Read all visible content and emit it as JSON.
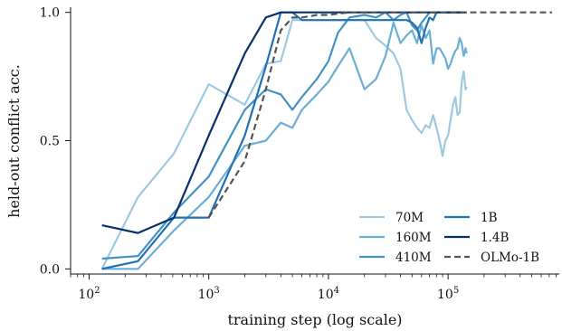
{
  "chart_data": {
    "type": "line",
    "xscale": "log",
    "xlabel": "training step (log scale)",
    "ylabel": "held-out conflict acc.",
    "xlim": [
      70,
      850000
    ],
    "ylim": [
      -0.02,
      1.02
    ],
    "grid": false,
    "legend_position": "lower-right",
    "x_ticks": [
      {
        "value": 100,
        "base": "10",
        "exp": "2"
      },
      {
        "value": 1000,
        "base": "10",
        "exp": "3"
      },
      {
        "value": 10000,
        "base": "10",
        "exp": "4"
      },
      {
        "value": 100000,
        "base": "10",
        "exp": "5"
      }
    ],
    "y_ticks": [
      {
        "value": 0.0,
        "label": "0.0"
      },
      {
        "value": 0.5,
        "label": "0.5"
      },
      {
        "value": 1.0,
        "label": "1.0"
      }
    ],
    "series": [
      {
        "name": "70M",
        "color": "#9ecae1",
        "dash": false,
        "points": [
          [
            128,
            0.0
          ],
          [
            256,
            0.28
          ],
          [
            512,
            0.45
          ],
          [
            1000,
            0.72
          ],
          [
            2000,
            0.64
          ],
          [
            3000,
            0.8
          ],
          [
            4000,
            0.81
          ],
          [
            5000,
            0.97
          ],
          [
            6000,
            0.97
          ],
          [
            7000,
            0.97
          ],
          [
            8000,
            0.97
          ],
          [
            10000,
            0.97
          ],
          [
            12000,
            0.97
          ],
          [
            15000,
            0.97
          ],
          [
            20000,
            0.97
          ],
          [
            25000,
            0.9
          ],
          [
            30000,
            0.87
          ],
          [
            35000,
            0.84
          ],
          [
            40000,
            0.78
          ],
          [
            45000,
            0.62
          ],
          [
            50000,
            0.58
          ],
          [
            55000,
            0.55
          ],
          [
            60000,
            0.53
          ],
          [
            65000,
            0.56
          ],
          [
            70000,
            0.55
          ],
          [
            75000,
            0.6
          ],
          [
            80000,
            0.55
          ],
          [
            85000,
            0.5
          ],
          [
            90000,
            0.44
          ],
          [
            95000,
            0.5
          ],
          [
            100000,
            0.52
          ],
          [
            110000,
            0.64
          ],
          [
            115000,
            0.67
          ],
          [
            120000,
            0.6
          ],
          [
            125000,
            0.61
          ],
          [
            130000,
            0.73
          ],
          [
            135000,
            0.77
          ],
          [
            140000,
            0.7
          ],
          [
            143000,
            0.71
          ]
        ]
      },
      {
        "name": "160M",
        "color": "#6baed6",
        "dash": false,
        "points": [
          [
            128,
            0.0
          ],
          [
            256,
            0.0
          ],
          [
            512,
            0.15
          ],
          [
            1000,
            0.28
          ],
          [
            2000,
            0.48
          ],
          [
            3000,
            0.5
          ],
          [
            4000,
            0.57
          ],
          [
            5000,
            0.55
          ],
          [
            6000,
            0.62
          ],
          [
            8000,
            0.68
          ],
          [
            10000,
            0.73
          ],
          [
            12000,
            0.79
          ],
          [
            15000,
            0.86
          ],
          [
            20000,
            0.7
          ],
          [
            25000,
            0.74
          ],
          [
            30000,
            0.83
          ],
          [
            35000,
            0.96
          ],
          [
            40000,
            0.88
          ],
          [
            45000,
            0.91
          ],
          [
            50000,
            0.93
          ],
          [
            55000,
            0.88
          ],
          [
            60000,
            0.95
          ],
          [
            65000,
            0.9
          ],
          [
            70000,
            0.93
          ],
          [
            75000,
            0.8
          ],
          [
            80000,
            0.86
          ],
          [
            85000,
            0.86
          ],
          [
            90000,
            0.84
          ],
          [
            95000,
            0.82
          ],
          [
            100000,
            0.78
          ],
          [
            105000,
            0.8
          ],
          [
            110000,
            0.83
          ],
          [
            115000,
            0.85
          ],
          [
            120000,
            0.86
          ],
          [
            125000,
            0.9
          ],
          [
            130000,
            0.88
          ],
          [
            135000,
            0.83
          ],
          [
            140000,
            0.86
          ],
          [
            143000,
            0.84
          ]
        ]
      },
      {
        "name": "410M",
        "color": "#4292c6",
        "dash": false,
        "points": [
          [
            128,
            0.04
          ],
          [
            256,
            0.05
          ],
          [
            512,
            0.22
          ],
          [
            1000,
            0.36
          ],
          [
            2000,
            0.62
          ],
          [
            3000,
            0.7
          ],
          [
            4000,
            0.68
          ],
          [
            5000,
            0.62
          ],
          [
            6000,
            0.67
          ],
          [
            8000,
            0.74
          ],
          [
            10000,
            0.81
          ],
          [
            12000,
            0.92
          ],
          [
            15000,
            0.98
          ],
          [
            20000,
            0.99
          ],
          [
            25000,
            0.98
          ],
          [
            30000,
            1.0
          ],
          [
            35000,
            0.97
          ],
          [
            40000,
            0.99
          ],
          [
            45000,
            1.0
          ],
          [
            50000,
            0.95
          ],
          [
            55000,
            0.93
          ],
          [
            60000,
            0.96
          ],
          [
            65000,
            0.98
          ],
          [
            70000,
            1.0
          ],
          [
            80000,
            1.0
          ],
          [
            100000,
            1.0
          ],
          [
            143000,
            1.0
          ]
        ]
      },
      {
        "name": "1B",
        "color": "#2171b5",
        "dash": false,
        "points": [
          [
            128,
            0.0
          ],
          [
            256,
            0.03
          ],
          [
            512,
            0.2
          ],
          [
            1000,
            0.2
          ],
          [
            2000,
            0.52
          ],
          [
            3000,
            0.79
          ],
          [
            4000,
            1.0
          ],
          [
            5000,
            1.0
          ],
          [
            6000,
            0.97
          ],
          [
            8000,
            0.97
          ],
          [
            10000,
            0.97
          ],
          [
            15000,
            0.97
          ],
          [
            20000,
            0.97
          ],
          [
            25000,
            0.97
          ],
          [
            30000,
            0.97
          ],
          [
            35000,
            0.97
          ],
          [
            40000,
            0.97
          ],
          [
            45000,
            0.97
          ],
          [
            50000,
            0.96
          ],
          [
            55000,
            0.94
          ],
          [
            60000,
            0.88
          ],
          [
            65000,
            0.94
          ],
          [
            70000,
            0.98
          ],
          [
            75000,
            0.97
          ],
          [
            80000,
            1.0
          ],
          [
            100000,
            1.0
          ],
          [
            143000,
            1.0
          ]
        ]
      },
      {
        "name": "1.4B",
        "color": "#08306b",
        "dash": false,
        "points": [
          [
            128,
            0.17
          ],
          [
            256,
            0.14
          ],
          [
            512,
            0.2
          ],
          [
            1000,
            0.52
          ],
          [
            2000,
            0.84
          ],
          [
            3000,
            0.98
          ],
          [
            4000,
            1.0
          ],
          [
            5000,
            1.0
          ],
          [
            6000,
            1.0
          ],
          [
            8000,
            1.0
          ],
          [
            10000,
            1.0
          ],
          [
            20000,
            1.0
          ],
          [
            50000,
            1.0
          ],
          [
            100000,
            1.0
          ],
          [
            143000,
            1.0
          ]
        ]
      },
      {
        "name": "OLMo-1B",
        "color": "#555555",
        "dash": true,
        "points": [
          [
            1000,
            0.2
          ],
          [
            2000,
            0.42
          ],
          [
            3000,
            0.7
          ],
          [
            4000,
            0.93
          ],
          [
            5000,
            0.98
          ],
          [
            6000,
            0.98
          ],
          [
            7000,
            0.985
          ],
          [
            8000,
            0.99
          ],
          [
            10000,
            0.99
          ],
          [
            15000,
            1.0
          ],
          [
            20000,
            1.0
          ],
          [
            50000,
            1.0
          ],
          [
            100000,
            1.0
          ],
          [
            200000,
            1.0
          ],
          [
            400000,
            1.0
          ],
          [
            739000,
            1.0
          ]
        ]
      }
    ]
  }
}
